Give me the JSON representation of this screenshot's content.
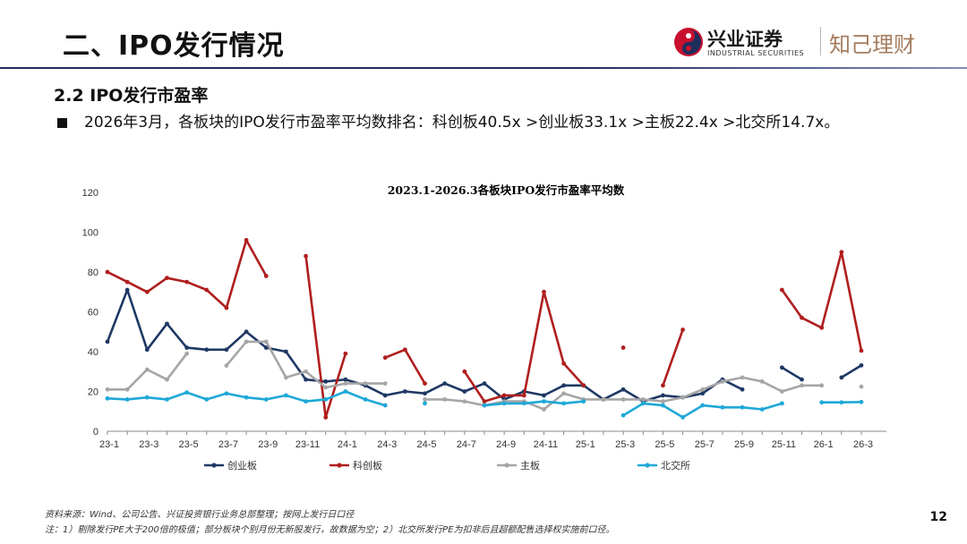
{
  "header": {
    "title": "二、IPO发行情况",
    "logo_cn": "兴业证券",
    "logo_en": "INDUSTRIAL SECURITIES",
    "logo_brand": "知己理财"
  },
  "subtitle": "2.2 IPO发行市盈率",
  "bullet": "2026年3月，各板块的IPO发行市盈率平均数排名：科创板40.5x >创业板33.1x >主板22.4x >北交所14.7x。",
  "footer": {
    "source": "资料来源：Wind、公司公告、兴证投资银行业务总部整理；按网上发行日口径",
    "note": "注：1）剔除发行PE大于200倍的极值；部分板块个别月份无新股发行，故数据为空；2）北交所发行PE为扣非后且超额配售选择权实施前口径。",
    "page": "12"
  },
  "colors": {
    "header_line": "#1f2d5c",
    "logo_red": "#c8102e",
    "logo_navy": "#1f2d5c",
    "brand_gold": "#a57d60"
  },
  "chart_data": {
    "type": "line",
    "title": "2023.1-2026.3各板块IPO发行市盈率平均数",
    "ylim": [
      0,
      120
    ],
    "yticks": [
      0,
      20,
      40,
      60,
      80,
      100,
      120
    ],
    "x_labels": [
      "23-1",
      "23-3",
      "23-5",
      "23-7",
      "23-9",
      "23-11",
      "24-1",
      "24-3",
      "24-5",
      "24-7",
      "24-9",
      "24-11",
      "25-1",
      "25-3",
      "25-5",
      "25-7",
      "25-9",
      "25-11",
      "26-1",
      "26-3"
    ],
    "months": [
      "23-1",
      "23-2",
      "23-3",
      "23-4",
      "23-5",
      "23-6",
      "23-7",
      "23-8",
      "23-9",
      "23-10",
      "23-11",
      "23-12",
      "24-1",
      "24-2",
      "24-3",
      "24-4",
      "24-5",
      "24-6",
      "24-7",
      "24-8",
      "24-9",
      "24-10",
      "24-11",
      "24-12",
      "25-1",
      "25-2",
      "25-3",
      "25-4",
      "25-5",
      "25-6",
      "25-7",
      "25-8",
      "25-9",
      "25-10",
      "25-11",
      "25-12",
      "26-1",
      "26-2",
      "26-3"
    ],
    "legend_position": "bottom",
    "series": [
      {
        "name": "创业板",
        "color": "#1f3864",
        "values": [
          45,
          71,
          41,
          54,
          42,
          41,
          41,
          50,
          42,
          40,
          26,
          25,
          26,
          23,
          18,
          20,
          19,
          24,
          20,
          24,
          16,
          20,
          18,
          23,
          23,
          16,
          21,
          15,
          18,
          17,
          19,
          26,
          21,
          null,
          32,
          26,
          null,
          27,
          33.1
        ]
      },
      {
        "name": "科创板",
        "color": "#b01e1e",
        "values": [
          80,
          75,
          70,
          77,
          75,
          71,
          62,
          96,
          78,
          null,
          88,
          7,
          39,
          null,
          37,
          41,
          24,
          null,
          30,
          15,
          18,
          18,
          70,
          34,
          23,
          null,
          42,
          null,
          23,
          51,
          null,
          null,
          null,
          null,
          71,
          57,
          52,
          90,
          40.5
        ]
      },
      {
        "name": "主板",
        "color": "#a6a6a6",
        "values": [
          21,
          21,
          31,
          26,
          39,
          null,
          33,
          45,
          45,
          27,
          30,
          22,
          24,
          24,
          24,
          null,
          16,
          16,
          15,
          13,
          15,
          15,
          11,
          19,
          16,
          16,
          16,
          16,
          15,
          17,
          21,
          25,
          27,
          25,
          20,
          23,
          23,
          null,
          22.4
        ]
      },
      {
        "name": "北交所",
        "color": "#1fa8d8",
        "values": [
          16.5,
          16,
          17,
          16,
          19.5,
          16,
          19,
          17,
          16,
          18,
          15,
          16,
          20,
          16,
          13,
          null,
          14,
          null,
          null,
          13,
          14,
          14,
          15,
          14,
          15,
          null,
          8,
          14,
          13,
          7,
          13,
          12,
          12,
          11,
          14,
          null,
          14.5,
          14.5,
          14.7
        ]
      }
    ]
  }
}
